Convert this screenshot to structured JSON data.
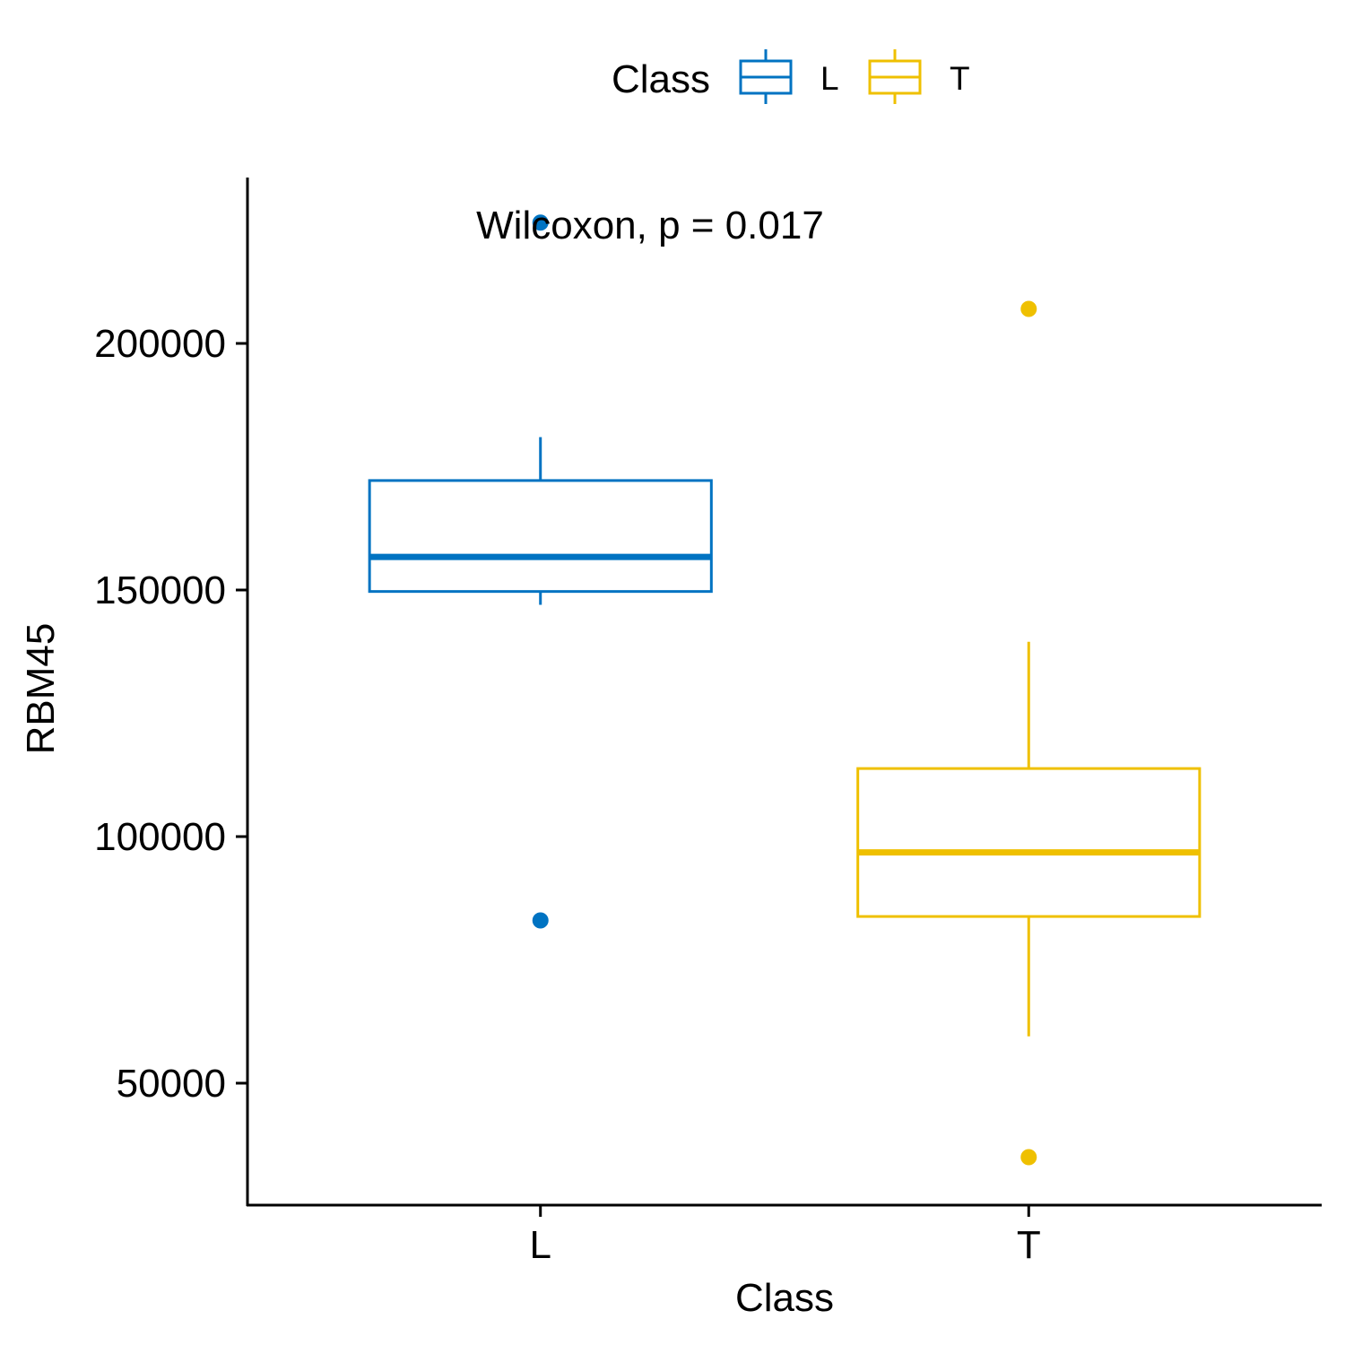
{
  "chart_data": {
    "type": "boxplot",
    "xlabel": "Class",
    "ylabel": "RBM45",
    "categories": [
      "L",
      "T"
    ],
    "ylim": [
      25000,
      233000
    ],
    "yticks": [
      50000,
      100000,
      150000,
      200000
    ],
    "ytick_labels": [
      "50000",
      "100000",
      "150000",
      "200000"
    ],
    "annotation": "Wilcoxon, p = 0.017",
    "legend": {
      "title": "Class",
      "position": "top",
      "entries": [
        "L",
        "T"
      ]
    },
    "grid": false,
    "series": [
      {
        "name": "L",
        "color": "#0073C2",
        "whisker_low": 147000,
        "q1": 149700,
        "median": 156700,
        "q3": 172200,
        "whisker_high": 181000,
        "outliers": [
          83000,
          224500
        ]
      },
      {
        "name": "T",
        "color": "#EFC000",
        "whisker_low": 59500,
        "q1": 83800,
        "median": 96800,
        "q3": 113800,
        "whisker_high": 139500,
        "outliers": [
          35000,
          207000
        ]
      }
    ]
  }
}
